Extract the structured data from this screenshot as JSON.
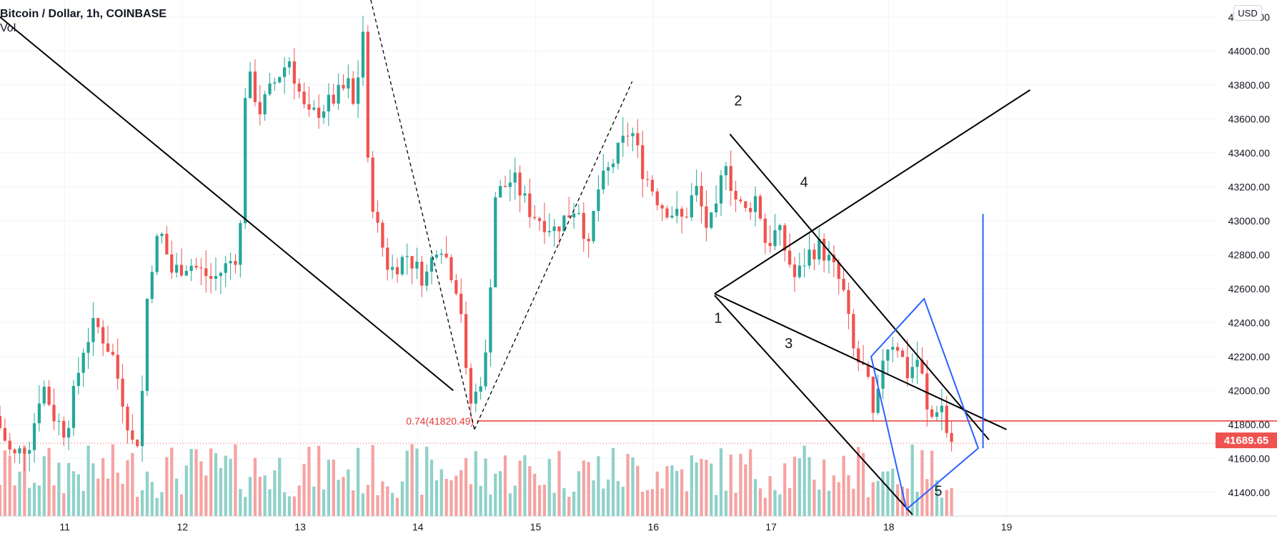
{
  "header": {
    "title": "Bitcoin / Dollar, 1h, COINBASE",
    "indicator": "Vol",
    "currency_button": "USD",
    "last_price": "41689.65",
    "fib_label": "0.74(41820.49)"
  },
  "annotations": [
    "1",
    "2",
    "3",
    "4",
    "5"
  ],
  "colors": {
    "up": "#26a69a",
    "down": "#ef5350",
    "volume_up": "#8fd1c9",
    "volume_down": "#f5a3a2",
    "trendline": "#000000",
    "box": "#2962ff",
    "fib_line": "#e53935"
  },
  "chart_data": {
    "type": "candlestick",
    "symbol": "Bitcoin / Dollar",
    "interval": "1h",
    "exchange": "COINBASE",
    "y_axis": {
      "side": "right",
      "range": [
        41260,
        44300
      ],
      "ticks": [
        41400,
        41600,
        41800,
        42000,
        42200,
        42400,
        42600,
        42800,
        43000,
        43200,
        43400,
        43600,
        43800,
        44000,
        44200
      ],
      "tick_labels": [
        "41400.00",
        "41600.00",
        "41800.00",
        "42000.00",
        "42200.00",
        "42400.00",
        "42600.00",
        "42800.00",
        "43000.00",
        "43200.00",
        "43400.00",
        "43600.00",
        "43800.00",
        "44000.00",
        "44200.00"
      ]
    },
    "x_axis": {
      "unit": "day",
      "range": [
        10.45,
        20.8
      ],
      "ticks": [
        11,
        12,
        13,
        14,
        15,
        16,
        17,
        18,
        19
      ],
      "tick_labels": [
        "11",
        "12",
        "13",
        "14",
        "15",
        "16",
        "17",
        "18",
        "19"
      ]
    },
    "anchors": [
      {
        "t": 10.45,
        "p": 41850
      },
      {
        "t": 10.6,
        "p": 41600
      },
      {
        "t": 10.75,
        "p": 41700
      },
      {
        "t": 10.85,
        "p": 42050
      },
      {
        "t": 10.95,
        "p": 41850
      },
      {
        "t": 11.05,
        "p": 41750
      },
      {
        "t": 11.2,
        "p": 42250
      },
      {
        "t": 11.3,
        "p": 42400
      },
      {
        "t": 11.45,
        "p": 42200
      },
      {
        "t": 11.55,
        "p": 41900
      },
      {
        "t": 11.62,
        "p": 41680
      },
      {
        "t": 11.68,
        "p": 41730
      },
      {
        "t": 11.75,
        "p": 42650
      },
      {
        "t": 11.85,
        "p": 42950
      },
      {
        "t": 11.95,
        "p": 42700
      },
      {
        "t": 12.1,
        "p": 42750
      },
      {
        "t": 12.3,
        "p": 42650
      },
      {
        "t": 12.5,
        "p": 42800
      },
      {
        "t": 12.55,
        "p": 43050
      },
      {
        "t": 12.58,
        "p": 43900
      },
      {
        "t": 12.7,
        "p": 43650
      },
      {
        "t": 12.85,
        "p": 43850
      },
      {
        "t": 12.95,
        "p": 43950
      },
      {
        "t": 13.1,
        "p": 43600
      },
      {
        "t": 13.3,
        "p": 43700
      },
      {
        "t": 13.45,
        "p": 43800
      },
      {
        "t": 13.5,
        "p": 43650
      },
      {
        "t": 13.58,
        "p": 44150
      },
      {
        "t": 13.62,
        "p": 43250
      },
      {
        "t": 13.7,
        "p": 42950
      },
      {
        "t": 13.8,
        "p": 42700
      },
      {
        "t": 13.95,
        "p": 42800
      },
      {
        "t": 14.1,
        "p": 42650
      },
      {
        "t": 14.22,
        "p": 42900
      },
      {
        "t": 14.3,
        "p": 42750
      },
      {
        "t": 14.4,
        "p": 42550
      },
      {
        "t": 14.47,
        "p": 41900
      },
      {
        "t": 14.55,
        "p": 42000
      },
      {
        "t": 14.62,
        "p": 42200
      },
      {
        "t": 14.7,
        "p": 43150
      },
      {
        "t": 14.85,
        "p": 43250
      },
      {
        "t": 15.0,
        "p": 43050
      },
      {
        "t": 15.2,
        "p": 42950
      },
      {
        "t": 15.4,
        "p": 43100
      },
      {
        "t": 15.5,
        "p": 42800
      },
      {
        "t": 15.55,
        "p": 43150
      },
      {
        "t": 15.7,
        "p": 43350
      },
      {
        "t": 15.85,
        "p": 43550
      },
      {
        "t": 15.95,
        "p": 43300
      },
      {
        "t": 16.1,
        "p": 43100
      },
      {
        "t": 16.3,
        "p": 43000
      },
      {
        "t": 16.4,
        "p": 43200
      },
      {
        "t": 16.5,
        "p": 42950
      },
      {
        "t": 16.58,
        "p": 43050
      },
      {
        "t": 16.65,
        "p": 43400
      },
      {
        "t": 16.72,
        "p": 43150
      },
      {
        "t": 16.82,
        "p": 43050
      },
      {
        "t": 16.92,
        "p": 43150
      },
      {
        "t": 17.0,
        "p": 42850
      },
      {
        "t": 17.1,
        "p": 42950
      },
      {
        "t": 17.25,
        "p": 42650
      },
      {
        "t": 17.35,
        "p": 42800
      },
      {
        "t": 17.45,
        "p": 42850
      },
      {
        "t": 17.55,
        "p": 42750
      },
      {
        "t": 17.65,
        "p": 42600
      },
      {
        "t": 17.75,
        "p": 42200
      },
      {
        "t": 17.85,
        "p": 42100
      },
      {
        "t": 17.92,
        "p": 41780
      },
      {
        "t": 18.0,
        "p": 42250
      },
      {
        "t": 18.1,
        "p": 42300
      },
      {
        "t": 18.2,
        "p": 42100
      },
      {
        "t": 18.3,
        "p": 42200
      },
      {
        "t": 18.38,
        "p": 41800
      },
      {
        "t": 18.48,
        "p": 41950
      },
      {
        "t": 18.55,
        "p": 41700
      }
    ],
    "volume": {
      "type": "bar",
      "max_height_share": 0.14
    },
    "horizontal_line": {
      "price": 41820.49,
      "label": "0.74(41820.49)"
    },
    "last_price": 41689.65,
    "annotations": [
      {
        "text": "1",
        "t": 16.55,
        "p": 42400
      },
      {
        "text": "2",
        "t": 16.72,
        "p": 43680
      },
      {
        "text": "3",
        "t": 17.15,
        "p": 42250
      },
      {
        "text": "4",
        "t": 17.28,
        "p": 43200
      },
      {
        "text": "5",
        "t": 18.42,
        "p": 41380
      }
    ],
    "trendlines": [
      {
        "kind": "solid",
        "t1": 10.45,
        "p1": 44200,
        "t2": 14.3,
        "p2": 42000
      },
      {
        "kind": "solid",
        "t1": 16.52,
        "p1": 42570,
        "t2": 19.2,
        "p2": 43770
      },
      {
        "kind": "solid",
        "t1": 16.65,
        "p1": 43510,
        "t2": 18.85,
        "p2": 41710
      },
      {
        "kind": "solid",
        "t1": 16.52,
        "p1": 42570,
        "t2": 19.0,
        "p2": 41770
      },
      {
        "kind": "solid",
        "t1": 16.52,
        "p1": 42560,
        "t2": 18.2,
        "p2": 41270
      },
      {
        "kind": "dashed",
        "t1": 13.6,
        "p1": 44300,
        "t2": 14.48,
        "p2": 41770
      },
      {
        "kind": "dashed",
        "t1": 14.48,
        "p1": 41770,
        "t2": 15.82,
        "p2": 43820
      },
      {
        "kind": "blue",
        "t1": 18.8,
        "p1": 41660,
        "t2": 19.0,
        "p2": 43040
      }
    ],
    "box": [
      {
        "t": 17.85,
        "p": 42200
      },
      {
        "t": 18.3,
        "p": 42540
      },
      {
        "t": 18.76,
        "p": 41660
      },
      {
        "t": 18.15,
        "p": 41300
      }
    ],
    "grid": true,
    "legend": "top-left"
  }
}
